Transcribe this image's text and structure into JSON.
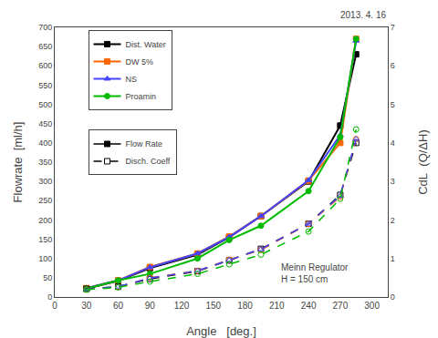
{
  "chart_data": {
    "type": "line",
    "x": [
      30,
      60,
      90,
      135,
      165,
      195,
      240,
      270,
      285
    ],
    "xlabel": "Angle   [deg.]",
    "ylabel": "Flowrate  [ml/h]",
    "y2label": "CdL  (Q/ΔH)",
    "xlim": [
      0,
      315
    ],
    "xticks": [
      0,
      30,
      60,
      90,
      120,
      150,
      180,
      210,
      240,
      270,
      300
    ],
    "ylim": [
      0,
      700
    ],
    "yticks": [
      0,
      50,
      100,
      150,
      200,
      250,
      300,
      350,
      400,
      450,
      500,
      550,
      600,
      650,
      700
    ],
    "y2lim": [
      0,
      7
    ],
    "y2ticks": [
      0,
      1,
      2,
      3,
      4,
      5,
      6,
      7
    ],
    "grid": false,
    "legend": "upper left",
    "series": [
      {
        "name": "Dist. Water",
        "color": "#000000",
        "values": [
          22,
          42,
          75,
          110,
          155,
          210,
          300,
          445,
          630
        ],
        "line_style": "solid",
        "marker": "square"
      },
      {
        "name": "DW 5%",
        "color": "#ff6600",
        "values": [
          23,
          43,
          78,
          113,
          157,
          210,
          302,
          400,
          670
        ],
        "line_style": "solid",
        "marker": "square"
      },
      {
        "name": "NS",
        "color": "#4444ff",
        "values": [
          23,
          43,
          77,
          113,
          156,
          210,
          303,
          420,
          665
        ],
        "line_style": "solid",
        "marker": "triangle-up"
      },
      {
        "name": "Proamin",
        "color": "#00bb00",
        "values": [
          22,
          43,
          60,
          100,
          148,
          185,
          275,
          415,
          670
        ],
        "line_style": "solid",
        "marker": "circle"
      },
      {
        "name": "Dist. Water",
        "color": "#000000",
        "values": [
          0.21,
          0.27,
          0.47,
          0.67,
          0.95,
          1.25,
          1.9,
          2.65,
          4.0
        ],
        "line_style": "dashed",
        "marker": "square-open",
        "axis": "y2"
      },
      {
        "name": "DW 5%",
        "color": "#ff6600",
        "values": [
          0.2,
          0.26,
          0.5,
          0.68,
          0.97,
          1.22,
          1.9,
          2.6,
          4.1
        ],
        "line_style": "dashed",
        "marker": "circle-open",
        "axis": "y2"
      },
      {
        "name": "NS",
        "color": "#4444ff",
        "values": [
          0.2,
          0.27,
          0.49,
          0.68,
          0.96,
          1.24,
          1.9,
          2.63,
          4.1
        ],
        "line_style": "dashed",
        "marker": "triangle-up-open",
        "axis": "y2"
      },
      {
        "name": "Proamin",
        "color": "#00bb00",
        "values": [
          0.19,
          0.25,
          0.4,
          0.6,
          0.85,
          1.1,
          1.7,
          2.55,
          4.35
        ],
        "line_style": "dashed",
        "marker": "circle-open",
        "axis": "y2"
      }
    ],
    "line_style_legend": [
      {
        "name": "Flow Rate",
        "color": "#000000",
        "line_style": "solid",
        "marker": "square"
      },
      {
        "name": "Disch. Coeff",
        "color": "#000000",
        "line_style": "dashed",
        "marker": "square-open"
      }
    ],
    "annotations": [
      {
        "text": "2013. 4. 16"
      },
      {
        "text": "Meinn Regulator\nH = 150 cm",
        "x": 212,
        "y": 28
      }
    ]
  }
}
